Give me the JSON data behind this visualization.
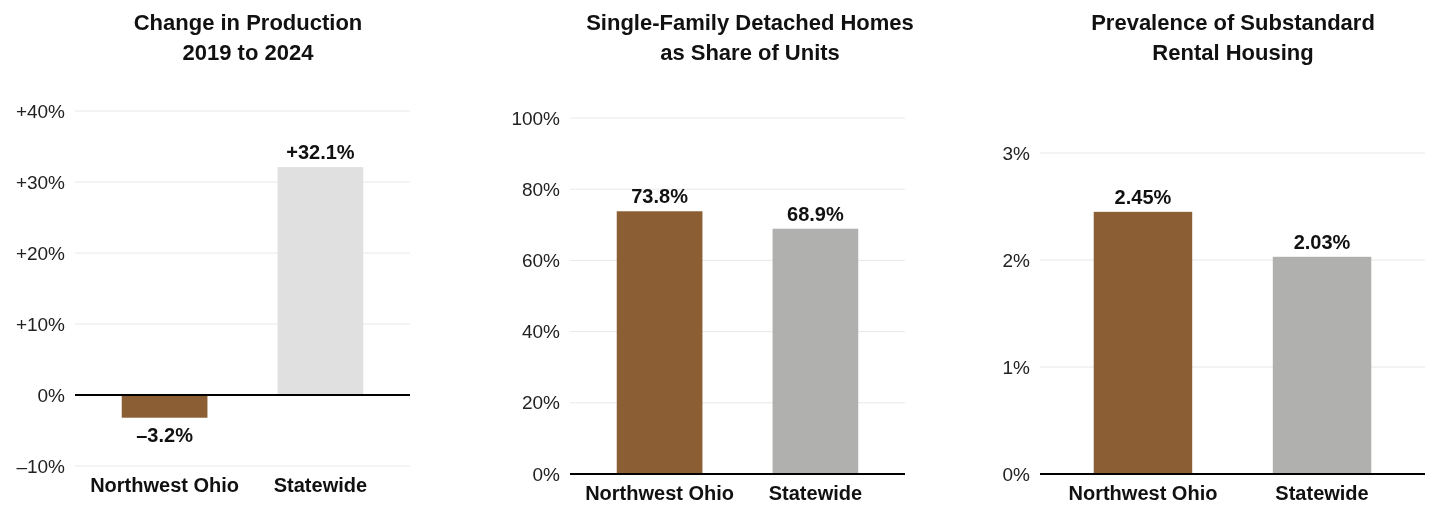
{
  "chart_data": [
    {
      "type": "bar",
      "title": "Change in Production\n2019 to 2024",
      "categories": [
        "Northwest Ohio",
        "Statewide"
      ],
      "values": [
        -3.2,
        32.1
      ],
      "colors": [
        "#8b5e34",
        "#e0e0e0"
      ],
      "value_labels": [
        "–3.2%",
        "+32.1%"
      ],
      "ylim": [
        -10,
        40
      ],
      "yticks": [
        {
          "value": -10,
          "label": "–10%"
        },
        {
          "value": 0,
          "label": "0%"
        },
        {
          "value": 10,
          "label": "+10%"
        },
        {
          "value": 20,
          "label": "+20%"
        },
        {
          "value": 30,
          "label": "+30%"
        },
        {
          "value": 40,
          "label": "+40%"
        }
      ],
      "grid": "y"
    },
    {
      "type": "bar",
      "title": "Single-Family Detached Homes\nas Share of Units",
      "categories": [
        "Northwest Ohio",
        "Statewide"
      ],
      "values": [
        73.8,
        68.9
      ],
      "colors": [
        "#8b5e34",
        "#b0b1ae"
      ],
      "value_labels": [
        "73.8%",
        "68.9%"
      ],
      "ylim": [
        0,
        100
      ],
      "yticks": [
        {
          "value": 0,
          "label": "0%"
        },
        {
          "value": 20,
          "label": "20%"
        },
        {
          "value": 40,
          "label": "40%"
        },
        {
          "value": 60,
          "label": "60%"
        },
        {
          "value": 80,
          "label": "80%"
        },
        {
          "value": 100,
          "label": "100%"
        }
      ],
      "grid": "y"
    },
    {
      "type": "bar",
      "title": "Prevalence of Substandard\nRental Housing",
      "categories": [
        "Northwest Ohio",
        "Statewide"
      ],
      "values": [
        2.45,
        2.03
      ],
      "colors": [
        "#8b5e34",
        "#b0b1ae"
      ],
      "value_labels": [
        "2.45%",
        "2.03%"
      ],
      "ylim": [
        0,
        3
      ],
      "yticks": [
        {
          "value": 0,
          "label": "0%"
        },
        {
          "value": 1,
          "label": "1%"
        },
        {
          "value": 2,
          "label": "2%"
        },
        {
          "value": 3,
          "label": "3%"
        }
      ],
      "grid": "y"
    }
  ]
}
